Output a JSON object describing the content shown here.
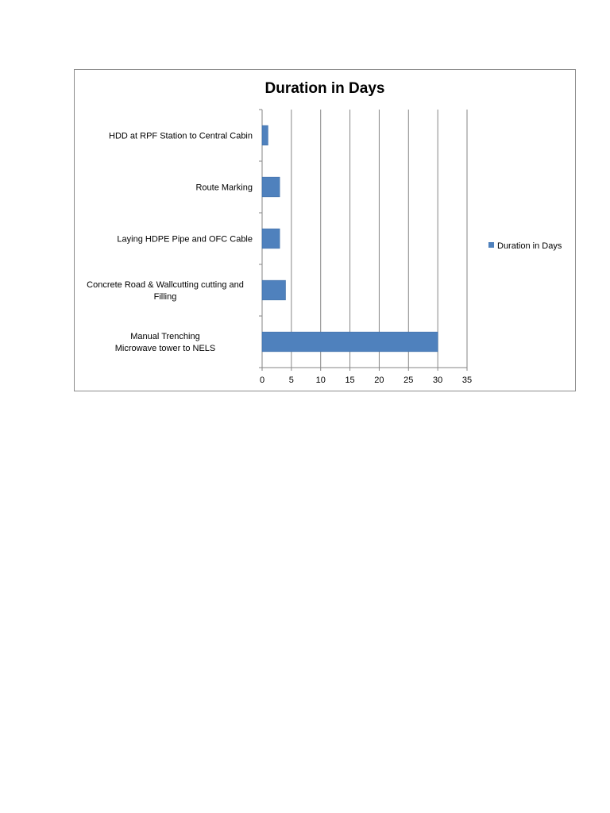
{
  "chart_data": {
    "type": "bar",
    "orientation": "horizontal",
    "title": "Duration in Days",
    "xlabel": "",
    "ylabel": "",
    "categories": [
      [
        "HDD at RPF Station to Central Cabin"
      ],
      [
        "Route Marking"
      ],
      [
        "Laying HDPE Pipe and OFC Cable"
      ],
      [
        "Concrete Road & Wallcutting cutting and",
        "Filling"
      ],
      [
        "Manual Trenching",
        "Microwave tower to NELS"
      ]
    ],
    "series": [
      {
        "name": "Duration in Days",
        "values": [
          1,
          3,
          3,
          4,
          30
        ],
        "color": "#4f81bd"
      }
    ],
    "xlim": [
      0,
      35
    ],
    "xticks": [
      "0",
      "5",
      "10",
      "15",
      "20",
      "25",
      "30",
      "35"
    ],
    "grid": "vertical-major",
    "legend_position": "right"
  }
}
